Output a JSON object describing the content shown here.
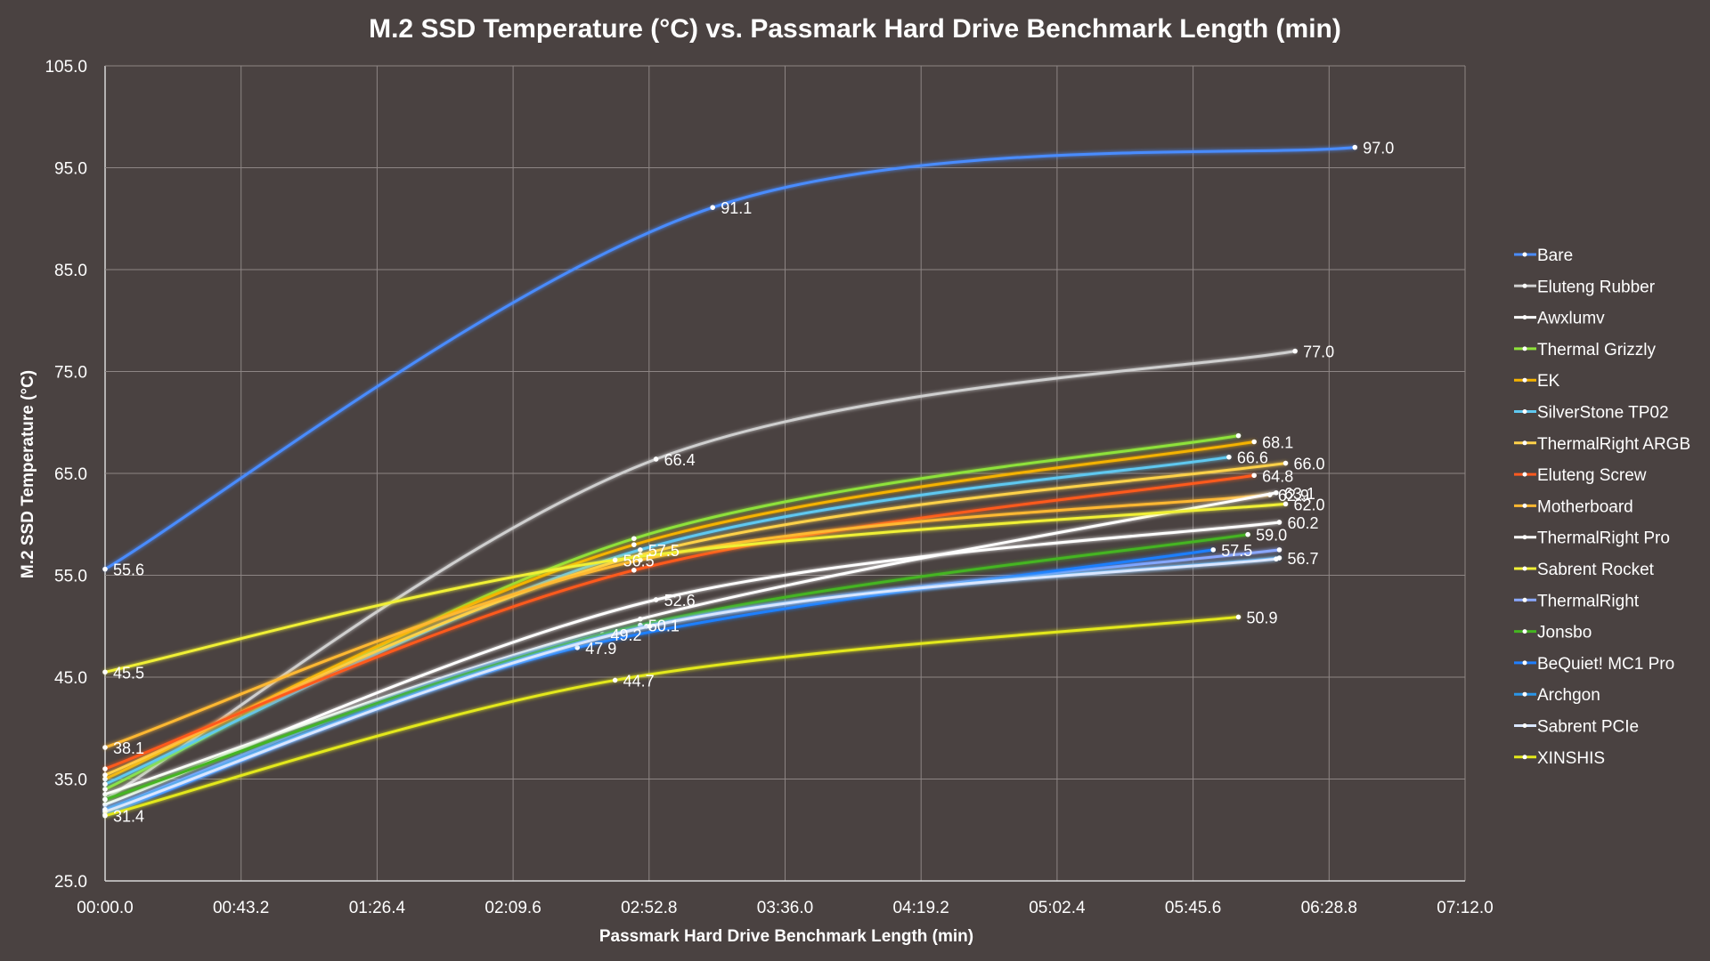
{
  "chart_data": {
    "type": "line",
    "title": "M.2 SSD Temperature (°C) vs. Passmark Hard Drive Benchmark Length (min)",
    "xlabel": "Passmark Hard Drive Benchmark Length (min)",
    "ylabel": "M.2 SSD Temperature (°C)",
    "x_unit": "time mm:ss.s",
    "xlim": [
      "00:00.0",
      "07:12.0"
    ],
    "ylim": [
      25.0,
      105.0
    ],
    "x_ticks": [
      "00:00.0",
      "00:43.2",
      "01:26.4",
      "02:09.6",
      "02:52.8",
      "03:36.0",
      "04:19.2",
      "05:02.4",
      "05:45.6",
      "06:28.8",
      "07:12.0"
    ],
    "y_ticks": [
      "25.0",
      "35.0",
      "45.0",
      "55.0",
      "65.0",
      "75.0",
      "85.0",
      "95.0",
      "105.0"
    ],
    "grid": true,
    "legend_position": "right",
    "series": [
      {
        "name": "Bare",
        "color": "#4a8cff",
        "points": [
          {
            "x": "00:00.0",
            "y": 55.6
          },
          {
            "x": "03:13.0",
            "y": 91.1
          },
          {
            "x": "06:37.0",
            "y": 97.0
          }
        ],
        "labels": [
          "55.6",
          "91.1",
          "97.0"
        ]
      },
      {
        "name": "Eluteng Rubber",
        "color": "#cfcfcf",
        "points": [
          {
            "x": "00:00.0",
            "y": 33.0
          },
          {
            "x": "02:55.0",
            "y": 66.4
          },
          {
            "x": "06:18.0",
            "y": 77.0
          }
        ],
        "labels": [
          "",
          "66.4",
          "77.0"
        ]
      },
      {
        "name": "Awxlumv",
        "color": "#ffffff",
        "points": [
          {
            "x": "00:00.0",
            "y": 32.5
          },
          {
            "x": "02:55.0",
            "y": 52.6
          },
          {
            "x": "06:13.0",
            "y": 60.2
          }
        ],
        "labels": [
          "",
          "52.6",
          "60.2"
        ]
      },
      {
        "name": "Thermal Grizzly",
        "color": "#8ee23a",
        "points": [
          {
            "x": "00:00.0",
            "y": 34.0
          },
          {
            "x": "02:48.0",
            "y": 58.6
          },
          {
            "x": "06:00.0",
            "y": 68.7
          }
        ],
        "labels": [
          "",
          "",
          ""
        ]
      },
      {
        "name": "EK",
        "color": "#f5b300",
        "points": [
          {
            "x": "00:00.0",
            "y": 35.0
          },
          {
            "x": "02:48.0",
            "y": 58.0
          },
          {
            "x": "06:05.0",
            "y": 68.1
          }
        ],
        "labels": [
          "",
          "",
          "68.1"
        ]
      },
      {
        "name": "SilverStone TP02",
        "color": "#5fc8f0",
        "points": [
          {
            "x": "00:00.0",
            "y": 34.5
          },
          {
            "x": "02:50.0",
            "y": 57.5
          },
          {
            "x": "05:57.0",
            "y": 66.6
          }
        ],
        "labels": [
          "",
          "57.5",
          "66.6"
        ]
      },
      {
        "name": "ThermalRight ARGB",
        "color": "#ffd24a",
        "points": [
          {
            "x": "00:00.0",
            "y": 35.4
          },
          {
            "x": "02:50.0",
            "y": 57.0
          },
          {
            "x": "06:15.0",
            "y": 66.0
          }
        ],
        "labels": [
          "",
          "",
          "66.0"
        ]
      },
      {
        "name": "Eluteng Screw",
        "color": "#ff5a1f",
        "points": [
          {
            "x": "00:00.0",
            "y": 36.0
          },
          {
            "x": "02:48.0",
            "y": 55.5
          },
          {
            "x": "06:05.0",
            "y": 64.8
          }
        ],
        "labels": [
          "",
          "",
          "64.8"
        ]
      },
      {
        "name": "Motherboard",
        "color": "#ffb830",
        "points": [
          {
            "x": "00:00.0",
            "y": 38.1
          },
          {
            "x": "02:50.0",
            "y": 56.5
          },
          {
            "x": "06:10.0",
            "y": 62.9
          }
        ],
        "labels": [
          "38.1",
          "",
          "62.9"
        ]
      },
      {
        "name": "ThermalRight Pro",
        "color": "#ffffff",
        "points": [
          {
            "x": "00:00.0",
            "y": 33.5
          },
          {
            "x": "02:50.0",
            "y": 50.7
          },
          {
            "x": "06:12.0",
            "y": 63.1
          }
        ],
        "labels": [
          "",
          "",
          "63.1"
        ]
      },
      {
        "name": "Sabrent Rocket",
        "color": "#f0f036",
        "points": [
          {
            "x": "00:00.0",
            "y": 45.5
          },
          {
            "x": "02:42.0",
            "y": 56.5
          },
          {
            "x": "06:15.0",
            "y": 62.0
          }
        ],
        "labels": [
          "45.5",
          "56.5",
          "62.0"
        ]
      },
      {
        "name": "ThermalRight",
        "color": "#8aa8ff",
        "points": [
          {
            "x": "00:00.0",
            "y": 32.0
          },
          {
            "x": "02:38.0",
            "y": 49.2
          },
          {
            "x": "06:13.0",
            "y": 57.5
          }
        ],
        "labels": [
          "",
          "49.2",
          ""
        ]
      },
      {
        "name": "Jonsbo",
        "color": "#44b520",
        "points": [
          {
            "x": "00:00.0",
            "y": 33.0
          },
          {
            "x": "02:50.0",
            "y": 50.1
          },
          {
            "x": "06:03.0",
            "y": 59.0
          }
        ],
        "labels": [
          "",
          "50.1",
          "59.0"
        ]
      },
      {
        "name": "BeQuiet! MC1 Pro",
        "color": "#1f7fff",
        "points": [
          {
            "x": "00:00.0",
            "y": 31.5
          },
          {
            "x": "02:30.0",
            "y": 47.9
          },
          {
            "x": "05:52.0",
            "y": 57.5
          }
        ],
        "labels": [
          "",
          "47.9",
          "57.5"
        ]
      },
      {
        "name": "Archgon",
        "color": "#2a96e8",
        "points": [
          {
            "x": "00:00.0",
            "y": 32.0
          },
          {
            "x": "02:52.0",
            "y": 50.0
          },
          {
            "x": "06:13.0",
            "y": 56.7
          }
        ],
        "labels": [
          "",
          "",
          "56.7"
        ]
      },
      {
        "name": "Sabrent PCIe",
        "color": "#d9e6ff",
        "points": [
          {
            "x": "00:00.0",
            "y": 31.8
          },
          {
            "x": "02:53.0",
            "y": 50.0
          },
          {
            "x": "06:12.0",
            "y": 56.6
          }
        ],
        "labels": [
          "",
          "",
          ""
        ]
      },
      {
        "name": "XINSHIS",
        "color": "#e3e81a",
        "points": [
          {
            "x": "00:00.0",
            "y": 31.4
          },
          {
            "x": "02:42.0",
            "y": 44.7
          },
          {
            "x": "06:00.0",
            "y": 50.9
          }
        ],
        "labels": [
          "31.4",
          "44.7",
          "50.9"
        ]
      }
    ]
  }
}
